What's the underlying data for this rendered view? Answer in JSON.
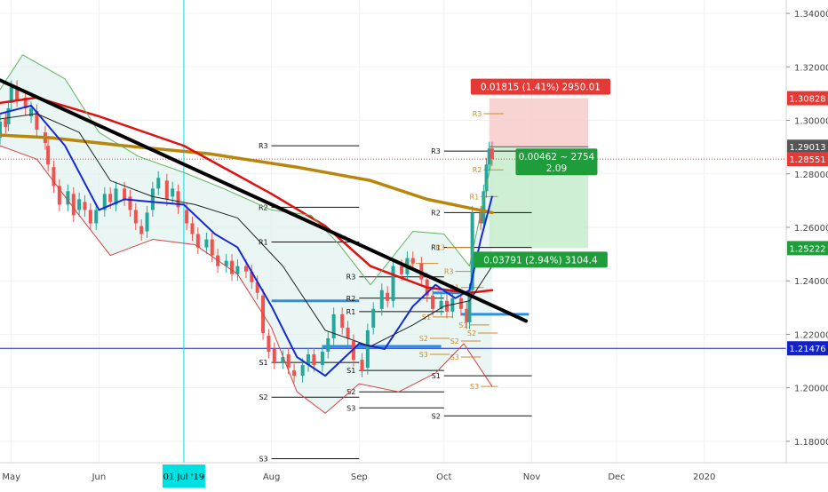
{
  "chart_data": {
    "type": "candlestick",
    "title": "",
    "xlabel": "",
    "ylabel": "",
    "x_ticks": [
      {
        "label": "May",
        "date": "2019-05-01"
      },
      {
        "label": "Jun",
        "date": "2019-06-01"
      },
      {
        "label": "01 Jul '19",
        "date": "2019-07-01",
        "highlighted": true
      },
      {
        "label": "Aug",
        "date": "2019-08-01"
      },
      {
        "label": "Sep",
        "date": "2019-09-01"
      },
      {
        "label": "Oct",
        "date": "2019-10-01"
      },
      {
        "label": "Nov",
        "date": "2019-11-01"
      },
      {
        "label": "Dec",
        "date": "2019-12-01"
      },
      {
        "label": "2020",
        "date": "2020-01-01"
      }
    ],
    "xlim": [
      "2019-04-27",
      "2020-01-30"
    ],
    "ylim": [
      1.172,
      1.345
    ],
    "y_ticks": [
      "1.18000",
      "1.20000",
      "1.22000",
      "1.24000",
      "1.26000",
      "1.28000",
      "1.30000",
      "1.32000",
      "1.34000"
    ],
    "price_tags": [
      {
        "label": "1.30828",
        "value": 1.30828,
        "color": "#e53935"
      },
      {
        "label": "1.29013",
        "value": 1.29013,
        "color": "#555555"
      },
      {
        "label": "1.28551",
        "value": 1.28551,
        "color": "#e53935"
      },
      {
        "label": "1.25222",
        "value": 1.25222,
        "color": "#1f9d3b"
      },
      {
        "label": "1.21476",
        "value": 1.21476,
        "color": "#1322c8"
      }
    ],
    "position": {
      "type": "long",
      "entry": 1.29013,
      "target": 1.30828,
      "stop": 1.25222,
      "start": "2019-10-17",
      "end": "2019-11-21",
      "target_label": "0.01815 (1.41%) 2950.01",
      "stop_label": "0.03791 (2.94%) 3104.4",
      "center_label": "0.00462 ~ 2754",
      "ratio_label": "2.09",
      "profit_color": "#f8caca",
      "loss_color": "#c7eccc"
    },
    "horizontal_line": {
      "value": 1.21476,
      "color": "#1322c8"
    },
    "dotted_current": {
      "value": 1.28551,
      "color": "#e53935"
    },
    "cursor_line": {
      "date": "2019-07-01",
      "color": "#00e0e0"
    },
    "trendline": {
      "x": [
        "2019-04-27",
        "2019-10-30"
      ],
      "y": [
        1.315,
        1.225
      ],
      "color": "#000000"
    },
    "blue_levels": [
      {
        "value": 1.2325,
        "start": "2019-08-01",
        "end": "2019-09-01"
      },
      {
        "value": 1.2155,
        "start": "2019-08-19",
        "end": "2019-09-30"
      },
      {
        "value": 1.2355,
        "start": "2019-09-27",
        "end": "2019-10-12"
      },
      {
        "value": 1.2275,
        "start": "2019-10-07",
        "end": "2019-10-31"
      }
    ],
    "pivot_labels_black": [
      {
        "label": "R3",
        "value": 1.2905,
        "start": "2019-08-01",
        "end": "2019-09-01"
      },
      {
        "label": "R2",
        "value": 1.2675,
        "start": "2019-08-01",
        "end": "2019-09-01"
      },
      {
        "label": "R1",
        "value": 1.2545,
        "start": "2019-08-01",
        "end": "2019-09-01"
      },
      {
        "label": "S1",
        "value": 1.2095,
        "start": "2019-08-01",
        "end": "2019-09-01"
      },
      {
        "label": "S2",
        "value": 1.1965,
        "start": "2019-08-01",
        "end": "2019-09-01"
      },
      {
        "label": "S3",
        "value": 1.1735,
        "start": "2019-08-01",
        "end": "2019-09-01"
      },
      {
        "label": "R3",
        "value": 1.2415,
        "start": "2019-09-01",
        "end": "2019-10-01"
      },
      {
        "label": "R2",
        "value": 1.2335,
        "start": "2019-09-01",
        "end": "2019-10-01"
      },
      {
        "label": "R1",
        "value": 1.2285,
        "start": "2019-09-01",
        "end": "2019-10-01"
      },
      {
        "label": "S1",
        "value": 1.2065,
        "start": "2019-09-01",
        "end": "2019-10-01"
      },
      {
        "label": "S2",
        "value": 1.1985,
        "start": "2019-09-01",
        "end": "2019-10-01"
      },
      {
        "label": "S3",
        "value": 1.1925,
        "start": "2019-09-01",
        "end": "2019-10-01"
      },
      {
        "label": "R3",
        "value": 1.2885,
        "start": "2019-10-01",
        "end": "2019-11-01"
      },
      {
        "label": "R2",
        "value": 1.2655,
        "start": "2019-10-01",
        "end": "2019-11-01"
      },
      {
        "label": "R1",
        "value": 1.2525,
        "start": "2019-10-01",
        "end": "2019-11-01"
      },
      {
        "label": "S1",
        "value": 1.2045,
        "start": "2019-10-01",
        "end": "2019-11-01"
      },
      {
        "label": "S2",
        "value": 1.1895,
        "start": "2019-10-01",
        "end": "2019-11-01"
      }
    ],
    "pivot_labels_orange": [
      {
        "label": "R3",
        "value": 1.3025,
        "start": "2019-10-15",
        "end": "2019-10-22"
      },
      {
        "label": "R2",
        "value": 1.2815,
        "start": "2019-10-15",
        "end": "2019-10-22"
      },
      {
        "label": "R1",
        "value": 1.2715,
        "start": "2019-10-14",
        "end": "2019-10-20"
      },
      {
        "label": "R3",
        "value": 1.2525,
        "start": "2019-10-02",
        "end": "2019-10-11"
      },
      {
        "label": "R2",
        "value": 1.2465,
        "start": "2019-09-21",
        "end": "2019-09-29"
      },
      {
        "label": "R1",
        "value": 1.2375,
        "start": "2019-10-07",
        "end": "2019-10-15"
      },
      {
        "label": "R3",
        "value": 1.2435,
        "start": "2019-10-05",
        "end": "2019-10-11"
      },
      {
        "label": "S1",
        "value": 1.2265,
        "start": "2019-09-27",
        "end": "2019-10-04"
      },
      {
        "label": "S2",
        "value": 1.2185,
        "start": "2019-09-26",
        "end": "2019-10-03"
      },
      {
        "label": "S3",
        "value": 1.2125,
        "start": "2019-09-26",
        "end": "2019-10-03"
      },
      {
        "label": "S1",
        "value": 1.2235,
        "start": "2019-10-10",
        "end": "2019-10-17"
      },
      {
        "label": "S2",
        "value": 1.2175,
        "start": "2019-10-07",
        "end": "2019-10-14"
      },
      {
        "label": "S3",
        "value": 1.2115,
        "start": "2019-10-07",
        "end": "2019-10-14"
      },
      {
        "label": "S2",
        "value": 1.2205,
        "start": "2019-10-13",
        "end": "2019-10-20"
      },
      {
        "label": "S3",
        "value": 1.2005,
        "start": "2019-10-14",
        "end": "2019-10-20"
      }
    ],
    "series": [
      {
        "id": "ma_gold",
        "color": "#b8860b",
        "width": 3.5,
        "x": [
          "2019-04-27",
          "2019-05-15",
          "2019-06-10",
          "2019-07-10",
          "2019-08-10",
          "2019-09-05",
          "2019-09-25",
          "2019-10-18"
        ],
        "y": [
          1.2945,
          1.2935,
          1.2905,
          1.2875,
          1.2825,
          1.2775,
          1.2705,
          1.2655
        ]
      },
      {
        "id": "ma_red",
        "color": "#e01010",
        "width": 2.5,
        "x": [
          "2019-04-27",
          "2019-05-10",
          "2019-06-01",
          "2019-07-01",
          "2019-08-01",
          "2019-08-20",
          "2019-09-05",
          "2019-09-25",
          "2019-10-10",
          "2019-10-18"
        ],
        "y": [
          1.3065,
          1.3085,
          1.3015,
          1.2905,
          1.2725,
          1.2605,
          1.2455,
          1.2375,
          1.2355,
          1.2365
        ]
      },
      {
        "id": "ma_blue",
        "color": "#1428d8",
        "width": 2,
        "x": [
          "2019-04-27",
          "2019-05-08",
          "2019-05-20",
          "2019-06-01",
          "2019-06-10",
          "2019-06-20",
          "2019-07-01",
          "2019-07-12",
          "2019-07-20",
          "2019-08-01",
          "2019-08-10",
          "2019-08-20",
          "2019-09-01",
          "2019-09-10",
          "2019-09-20",
          "2019-09-28",
          "2019-10-05",
          "2019-10-10",
          "2019-10-14",
          "2019-10-18"
        ],
        "y": [
          1.3025,
          1.3055,
          1.2905,
          1.2665,
          1.2705,
          1.2695,
          1.2685,
          1.2575,
          1.2525,
          1.2305,
          1.2115,
          1.2045,
          1.2165,
          1.2145,
          1.2305,
          1.2385,
          1.2335,
          1.2365,
          1.2555,
          1.2715
        ]
      },
      {
        "id": "ma_thin",
        "color": "#222222",
        "width": 1,
        "x": [
          "2019-04-27",
          "2019-05-10",
          "2019-05-25",
          "2019-06-05",
          "2019-06-20",
          "2019-07-05",
          "2019-07-20",
          "2019-08-05",
          "2019-08-20",
          "2019-09-05",
          "2019-09-20",
          "2019-10-01",
          "2019-10-10",
          "2019-10-18"
        ],
        "y": [
          1.3005,
          1.3025,
          1.2955,
          1.2775,
          1.2715,
          1.2685,
          1.2635,
          1.2455,
          1.2215,
          1.2155,
          1.2235,
          1.2305,
          1.2325,
          1.2455
        ]
      },
      {
        "id": "bb_upper",
        "color": "#5fb35f",
        "width": 1,
        "x": [
          "2019-04-27",
          "2019-05-05",
          "2019-05-20",
          "2019-06-01",
          "2019-06-15",
          "2019-07-01",
          "2019-07-15",
          "2019-08-01",
          "2019-08-15",
          "2019-08-25",
          "2019-09-05",
          "2019-09-20",
          "2019-10-01",
          "2019-10-10",
          "2019-10-18"
        ],
        "y": [
          1.3115,
          1.3245,
          1.3155,
          1.2955,
          1.2865,
          1.2805,
          1.2745,
          1.2665,
          1.2645,
          1.2535,
          1.2385,
          1.2585,
          1.2575,
          1.2455,
          1.2855
        ]
      },
      {
        "id": "bb_lower",
        "color": "#d84040",
        "width": 1,
        "x": [
          "2019-04-27",
          "2019-05-10",
          "2019-05-25",
          "2019-06-05",
          "2019-06-20",
          "2019-07-05",
          "2019-07-20",
          "2019-08-01",
          "2019-08-10",
          "2019-08-20",
          "2019-09-01",
          "2019-09-15",
          "2019-09-28",
          "2019-10-08",
          "2019-10-18"
        ],
        "y": [
          1.2905,
          1.2855,
          1.2645,
          1.2495,
          1.2555,
          1.2535,
          1.2425,
          1.2225,
          1.1985,
          1.1905,
          1.2015,
          1.1985,
          1.2055,
          1.2165,
          1.2005
        ]
      }
    ],
    "candles": [
      [
        "2019-04-27",
        1.2935,
        1.2995
      ],
      [
        "2019-04-29",
        1.3005,
        1.2975
      ],
      [
        "2019-04-30",
        1.2985,
        1.3045
      ],
      [
        "2019-05-01",
        1.3065,
        1.3125
      ],
      [
        "2019-05-03",
        1.3125,
        1.3075
      ],
      [
        "2019-05-06",
        1.3085,
        1.3045
      ],
      [
        "2019-05-08",
        1.3015,
        1.3045
      ],
      [
        "2019-05-10",
        1.3035,
        1.2965
      ],
      [
        "2019-05-13",
        1.2955,
        1.2915
      ],
      [
        "2019-05-14",
        1.2905,
        1.2835
      ],
      [
        "2019-05-16",
        1.2825,
        1.2755
      ],
      [
        "2019-05-18",
        1.2755,
        1.2685
      ],
      [
        "2019-05-21",
        1.2685,
        1.2735
      ],
      [
        "2019-05-23",
        1.2725,
        1.2645
      ],
      [
        "2019-05-25",
        1.2665,
        1.2705
      ],
      [
        "2019-05-27",
        1.2695,
        1.2665
      ],
      [
        "2019-05-29",
        1.2665,
        1.2615
      ],
      [
        "2019-05-31",
        1.2615,
        1.2665
      ],
      [
        "2019-06-03",
        1.2665,
        1.2725
      ],
      [
        "2019-06-05",
        1.2725,
        1.2695
      ],
      [
        "2019-06-07",
        1.2685,
        1.2745
      ],
      [
        "2019-06-10",
        1.2745,
        1.2705
      ],
      [
        "2019-06-12",
        1.2715,
        1.2665
      ],
      [
        "2019-06-14",
        1.2665,
        1.2615
      ],
      [
        "2019-06-16",
        1.2605,
        1.2575
      ],
      [
        "2019-06-18",
        1.2585,
        1.2655
      ],
      [
        "2019-06-20",
        1.2665,
        1.2745
      ],
      [
        "2019-06-22",
        1.2745,
        1.2785
      ],
      [
        "2019-06-25",
        1.2775,
        1.2705
      ],
      [
        "2019-06-27",
        1.2715,
        1.2745
      ],
      [
        "2019-06-29",
        1.2735,
        1.2675
      ],
      [
        "2019-07-02",
        1.2665,
        1.2615
      ],
      [
        "2019-07-04",
        1.2615,
        1.2575
      ],
      [
        "2019-07-06",
        1.2575,
        1.2525
      ],
      [
        "2019-07-09",
        1.2525,
        1.2555
      ],
      [
        "2019-07-11",
        1.2555,
        1.2495
      ],
      [
        "2019-07-13",
        1.2495,
        1.2455
      ],
      [
        "2019-07-16",
        1.2455,
        1.2475
      ],
      [
        "2019-07-18",
        1.2475,
        1.2425
      ],
      [
        "2019-07-20",
        1.2425,
        1.2455
      ],
      [
        "2019-07-23",
        1.2455,
        1.2435
      ],
      [
        "2019-07-25",
        1.2435,
        1.2395
      ],
      [
        "2019-07-27",
        1.2395,
        1.2355
      ],
      [
        "2019-07-29",
        1.2345,
        1.2205
      ],
      [
        "2019-07-31",
        1.2195,
        1.2135
      ],
      [
        "2019-08-02",
        1.2145,
        1.2095
      ],
      [
        "2019-08-05",
        1.2095,
        1.2115
      ],
      [
        "2019-08-07",
        1.2125,
        1.2075
      ],
      [
        "2019-08-09",
        1.2065,
        1.2045
      ],
      [
        "2019-08-12",
        1.2045,
        1.2085
      ],
      [
        "2019-08-14",
        1.2085,
        1.2125
      ],
      [
        "2019-08-16",
        1.2125,
        1.2085
      ],
      [
        "2019-08-19",
        1.2085,
        1.2135
      ],
      [
        "2019-08-21",
        1.2135,
        1.2185
      ],
      [
        "2019-08-23",
        1.2185,
        1.2275
      ],
      [
        "2019-08-26",
        1.2275,
        1.2225
      ],
      [
        "2019-08-28",
        1.2225,
        1.2185
      ],
      [
        "2019-08-30",
        1.2175,
        1.2105
      ],
      [
        "2019-09-02",
        1.2105,
        1.2065
      ],
      [
        "2019-09-04",
        1.2075,
        1.2215
      ],
      [
        "2019-09-06",
        1.2225,
        1.2295
      ],
      [
        "2019-09-09",
        1.2295,
        1.2365
      ],
      [
        "2019-09-11",
        1.2355,
        1.2325
      ],
      [
        "2019-09-13",
        1.2325,
        1.2455
      ],
      [
        "2019-09-16",
        1.2455,
        1.2425
      ],
      [
        "2019-09-18",
        1.2425,
        1.2485
      ],
      [
        "2019-09-20",
        1.2485,
        1.2465
      ],
      [
        "2019-09-23",
        1.2465,
        1.2405
      ],
      [
        "2019-09-25",
        1.2405,
        1.2345
      ],
      [
        "2019-09-27",
        1.2345,
        1.2295
      ],
      [
        "2019-09-30",
        1.2295,
        1.2325
      ],
      [
        "2019-10-02",
        1.2325,
        1.2285
      ],
      [
        "2019-10-04",
        1.2285,
        1.2335
      ],
      [
        "2019-10-07",
        1.2335,
        1.2295
      ],
      [
        "2019-10-09",
        1.2295,
        1.2245
      ],
      [
        "2019-10-10",
        1.2245,
        1.2365
      ],
      [
        "2019-10-11",
        1.2365,
        1.2655
      ],
      [
        "2019-10-14",
        1.2655,
        1.2615
      ],
      [
        "2019-10-15",
        1.2615,
        1.2735
      ],
      [
        "2019-10-16",
        1.2735,
        1.2835
      ],
      [
        "2019-10-17",
        1.2835,
        1.2895
      ],
      [
        "2019-10-18",
        1.2895,
        1.2855
      ]
    ]
  }
}
